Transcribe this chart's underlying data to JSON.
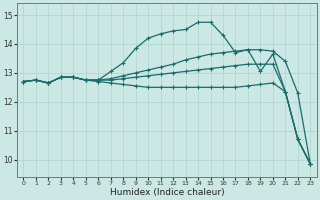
{
  "xlabel": "Humidex (Indice chaleur)",
  "bg_color": "#cce8e4",
  "grid_color": "#b0d8d0",
  "line_color": "#1a6b6b",
  "xlim": [
    -0.5,
    23.5
  ],
  "ylim": [
    9.4,
    15.4
  ],
  "xticks": [
    0,
    1,
    2,
    3,
    4,
    5,
    6,
    7,
    8,
    9,
    10,
    11,
    12,
    13,
    14,
    15,
    16,
    17,
    18,
    19,
    20,
    21,
    22,
    23
  ],
  "yticks": [
    10,
    11,
    12,
    13,
    14,
    15
  ],
  "series": [
    {
      "x": [
        0,
        1,
        2,
        3,
        4,
        5,
        6,
        7,
        8,
        9,
        10,
        11,
        12,
        13,
        14,
        15,
        16,
        17,
        18,
        19,
        20,
        21,
        22,
        23
      ],
      "y": [
        12.7,
        12.75,
        12.65,
        12.85,
        12.85,
        12.75,
        12.75,
        13.05,
        13.35,
        13.85,
        14.2,
        14.35,
        14.45,
        14.5,
        14.75,
        14.75,
        14.3,
        13.7,
        13.8,
        13.05,
        13.65,
        12.35,
        10.7,
        9.85
      ]
    },
    {
      "x": [
        0,
        1,
        2,
        3,
        4,
        5,
        6,
        7,
        8,
        9,
        10,
        11,
        12,
        13,
        14,
        15,
        16,
        17,
        18,
        19,
        20,
        21,
        22,
        23
      ],
      "y": [
        12.7,
        12.75,
        12.65,
        12.85,
        12.85,
        12.75,
        12.75,
        12.8,
        12.9,
        13.0,
        13.1,
        13.2,
        13.3,
        13.45,
        13.55,
        13.65,
        13.7,
        13.75,
        13.8,
        13.8,
        13.75,
        13.4,
        12.3,
        9.85
      ]
    },
    {
      "x": [
        0,
        1,
        2,
        3,
        4,
        5,
        6,
        7,
        8,
        9,
        10,
        11,
        12,
        13,
        14,
        15,
        16,
        17,
        18,
        19,
        20,
        21,
        22,
        23
      ],
      "y": [
        12.7,
        12.75,
        12.65,
        12.85,
        12.85,
        12.75,
        12.75,
        12.75,
        12.8,
        12.85,
        12.9,
        12.95,
        13.0,
        13.05,
        13.1,
        13.15,
        13.2,
        13.25,
        13.3,
        13.3,
        13.3,
        12.35,
        10.7,
        9.85
      ]
    },
    {
      "x": [
        0,
        1,
        2,
        3,
        4,
        5,
        6,
        7,
        8,
        9,
        10,
        11,
        12,
        13,
        14,
        15,
        16,
        17,
        18,
        19,
        20,
        21,
        22,
        23
      ],
      "y": [
        12.7,
        12.75,
        12.65,
        12.85,
        12.85,
        12.75,
        12.7,
        12.65,
        12.6,
        12.55,
        12.5,
        12.5,
        12.5,
        12.5,
        12.5,
        12.5,
        12.5,
        12.5,
        12.55,
        12.6,
        12.65,
        12.35,
        10.7,
        9.85
      ]
    }
  ]
}
